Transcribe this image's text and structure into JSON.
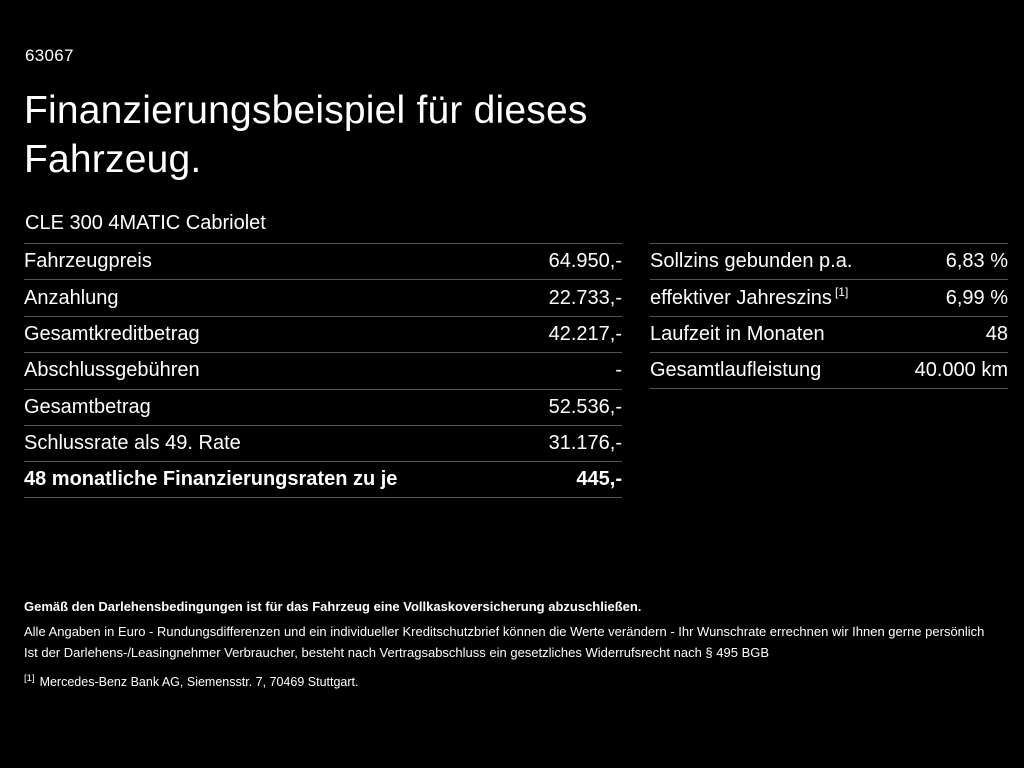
{
  "meta": {
    "code": "63067"
  },
  "header": {
    "title_line1": "Finanzierungsbeispiel für dieses",
    "title_line2": "Fahrzeug.",
    "model": "CLE 300 4MATIC Cabriolet"
  },
  "left_table": {
    "rows": [
      {
        "label": "Fahrzeugpreis",
        "value": "64.950,-"
      },
      {
        "label": "Anzahlung",
        "value": "22.733,-"
      },
      {
        "label": "Gesamtkreditbetrag",
        "value": "42.217,-"
      },
      {
        "label": "Abschlussgebühren",
        "value": "-"
      },
      {
        "label": "Gesamtbetrag",
        "value": "52.536,-"
      },
      {
        "label": "Schlussrate als 49. Rate",
        "value": "31.176,-"
      },
      {
        "label": "48 monatliche Finanzierungsraten zu je",
        "value": "445,-"
      }
    ]
  },
  "right_table": {
    "rows": [
      {
        "label": "Sollzins gebunden p.a.",
        "value": "6,83 %"
      },
      {
        "label": "effektiver Jahreszins",
        "sup_marker": "[1]",
        "value": "6,99 %"
      },
      {
        "label": "Laufzeit in Monaten",
        "value": "48"
      },
      {
        "label": "Gesamtlaufleistung",
        "value": "40.000 km"
      }
    ]
  },
  "footer": {
    "line_bold": "Gemäß den Darlehensbedingungen ist für das Fahrzeug eine Vollkaskoversicherung abzuschließen.",
    "line2": "Alle Angaben in Euro - Rundungsdifferenzen und ein individueller Kreditschutzbrief können die Werte verändern - Ihr Wunschrate errechnen wir Ihnen gerne persönlich",
    "line3": "Ist der Darlehens-/Leasingnehmer Verbraucher, besteht nach Vertragsabschluss ein gesetzliches Widerrufsrecht nach § 495 BGB",
    "footnote_marker": "[1]",
    "footnote_text": "Mercedes-Benz Bank AG, Siemensstr. 7, 70469 Stuttgart."
  },
  "colors": {
    "background": "#000000",
    "text": "#ffffff",
    "divider": "#565656"
  }
}
